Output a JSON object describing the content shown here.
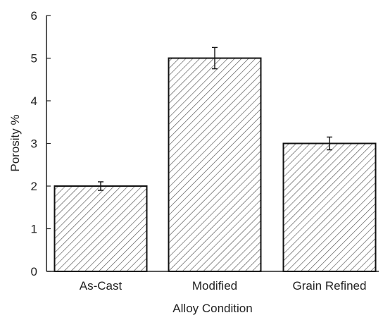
{
  "chart_data": {
    "type": "bar",
    "categories": [
      "As-Cast",
      "Modified",
      "Grain Refined"
    ],
    "values": [
      2.0,
      5.0,
      3.0
    ],
    "errors": [
      0.1,
      0.25,
      0.15
    ],
    "title": "",
    "xlabel": "Alloy Condition",
    "ylabel": "Porosity %",
    "ylim": [
      0,
      6
    ],
    "yticks": [
      "0",
      "1",
      "2",
      "3",
      "4",
      "5",
      "6"
    ],
    "grid": false,
    "bar_fill": "hatched",
    "colors": {
      "axis": "#222222",
      "bar_edge": "#111111",
      "hatch": "#555555"
    }
  }
}
